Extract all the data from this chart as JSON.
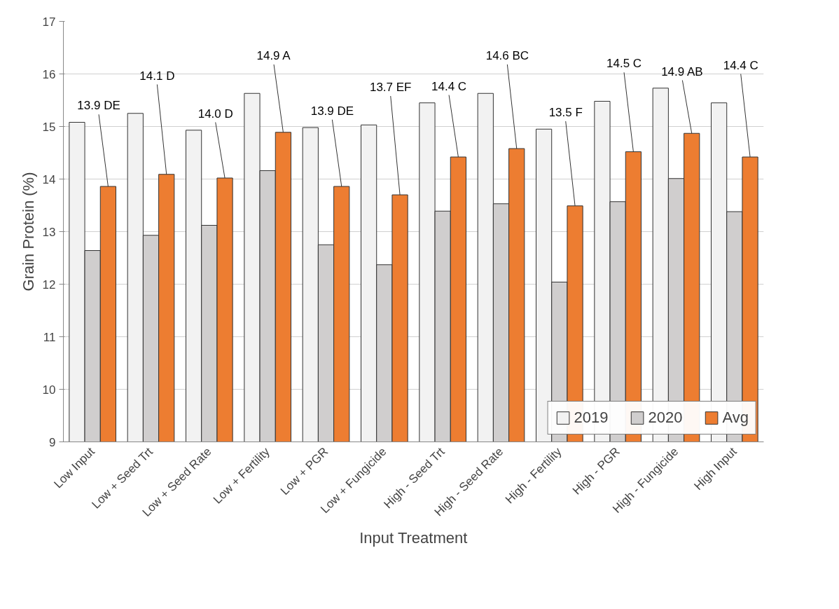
{
  "chart_data": {
    "type": "bar",
    "xlabel": "Input Treatment",
    "ylabel": "Grain Protein (%)",
    "categories": [
      "Low Input",
      "Low + Seed Trt",
      "Low + Seed Rate",
      "Low + Fertility",
      "Low + PGR",
      "Low + Fungicide",
      "High - Seed Trt",
      "High - Seed Rate",
      "High - Fertility",
      "High - PGR",
      "High - Fungicide",
      "High Input"
    ],
    "series": [
      {
        "name": "2019",
        "color": "#f2f2f2",
        "values": [
          15.08,
          15.25,
          14.93,
          15.63,
          14.98,
          15.03,
          15.45,
          15.63,
          14.95,
          15.48,
          15.73,
          15.45
        ]
      },
      {
        "name": "2020",
        "color": "#d0cece",
        "values": [
          12.64,
          12.93,
          13.12,
          14.16,
          12.75,
          12.37,
          13.39,
          13.53,
          12.04,
          13.57,
          14.01,
          13.38
        ]
      },
      {
        "name": "Avg",
        "color": "#ed7d31",
        "values": [
          13.86,
          14.09,
          14.02,
          14.89,
          13.86,
          13.7,
          14.42,
          14.58,
          13.49,
          14.52,
          14.87,
          14.42
        ],
        "value_labels": [
          "13.9 DE",
          "14.1 D",
          "14.0 D",
          "14.9 A",
          "13.9 DE",
          "13.7 EF",
          "14.4 C",
          "14.6 BC",
          "13.5 F",
          "14.5 C",
          "14.9 AB",
          "14.4 C"
        ]
      }
    ],
    "ylim": [
      9,
      17
    ],
    "yticks": [
      9,
      10,
      11,
      12,
      13,
      14,
      15,
      16,
      17
    ],
    "grid": "y",
    "legend": "bottom right"
  }
}
